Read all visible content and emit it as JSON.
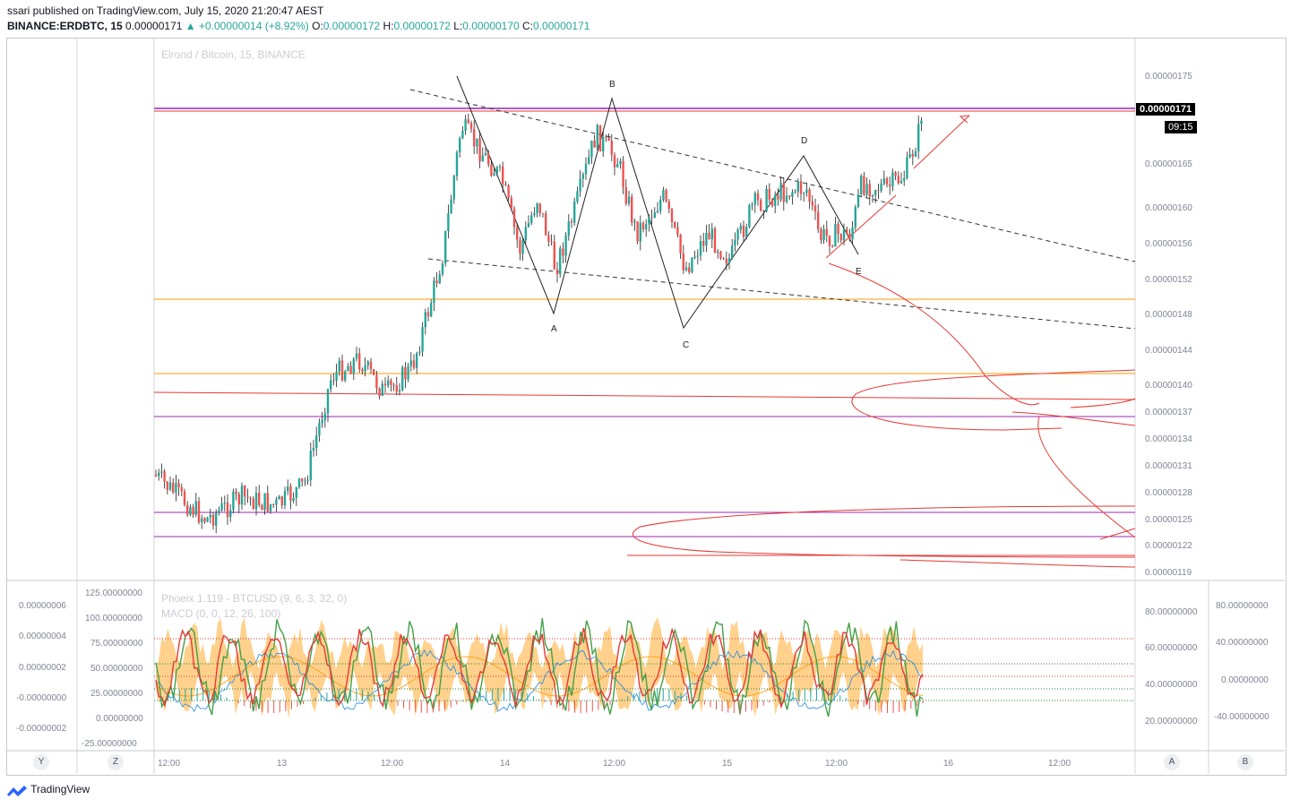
{
  "header": {
    "publisher": "ssari published on TradingView.com, July 15, 2020 21:20:47 AEST",
    "symbol": "BINANCE:ERDBTC, 15",
    "last": "0.00000171",
    "change": "▲ +0.00000014 (+8.92%)",
    "o_label": "O:",
    "o": "0.00000172",
    "h_label": "H:",
    "h": "0.00000172",
    "l_label": "L:",
    "l": "0.00000170",
    "c_label": "C:",
    "c": "0.00000171"
  },
  "main": {
    "watermark": "Elrond / Bitcoin, 15, BINANCE",
    "price_ticks": [
      "0.00000175",
      "0.00000165",
      "0.00000160",
      "0.00000156",
      "0.00000152",
      "0.00000148",
      "0.00000144",
      "0.00000140",
      "0.00000137",
      "0.00000134",
      "0.00000131",
      "0.00000128",
      "0.00000125",
      "0.00000122",
      "0.00000119"
    ],
    "price_tag": "0.00000171",
    "countdown": "09:15",
    "pattern_labels": [
      "A",
      "B",
      "C",
      "D",
      "E"
    ]
  },
  "osc": {
    "line1": "Phoeix 1.119 - BTCUSD (9, 6, 3, 32, 0)",
    "line2": "MACD (0, 0, 12, 26, 100)",
    "left_ticks": [
      "0.00000006",
      "0.00000004",
      "0.00000002",
      "-0.00000000",
      "-0.00000002"
    ],
    "mid_ticks": [
      "125.00000000",
      "100.00000000",
      "75.00000000",
      "50.00000000",
      "25.00000000",
      "0.00000000",
      "-25.00000000"
    ],
    "right1_ticks": [
      "80.00000000",
      "60.00000000",
      "40.00000000",
      "20.00000000"
    ],
    "right2_ticks": [
      "80.00000000",
      "40.00000000",
      "0.00000000",
      "-40.00000000"
    ]
  },
  "time_axis": [
    "12:00",
    "13",
    "12:00",
    "14",
    "12:00",
    "15",
    "12:00",
    "16",
    "12:00"
  ],
  "buttons": {
    "y": "Y",
    "z": "Z",
    "a": "A",
    "b": "B"
  },
  "footer": {
    "brand": "TradingView"
  },
  "colors": {
    "up": "#26a69a",
    "down": "#ef5350",
    "fib": "#ff9800",
    "red": "#e53935",
    "purple": "#9c27b0"
  }
}
